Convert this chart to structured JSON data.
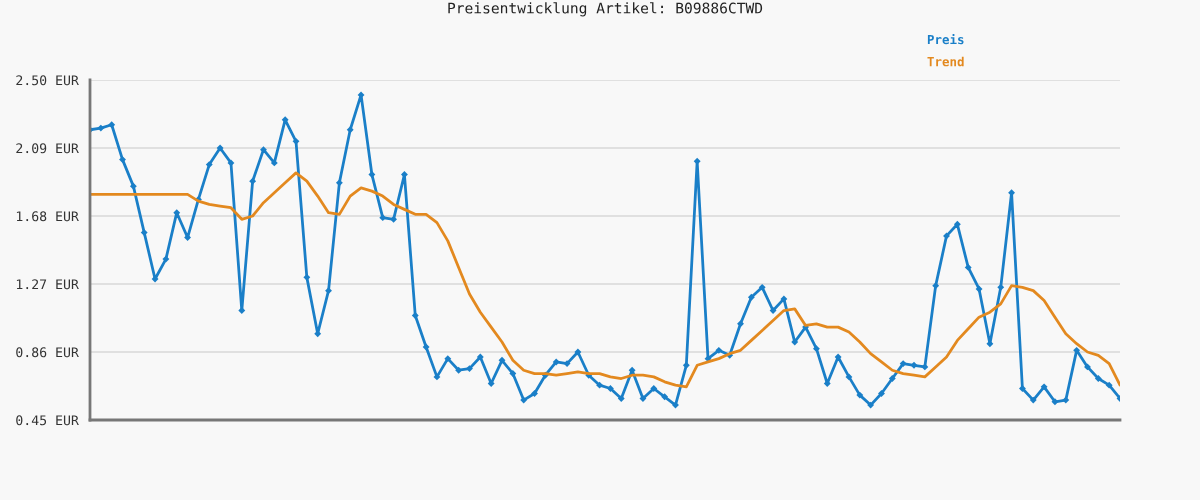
{
  "chart_data": {
    "type": "line",
    "title": "Preisentwicklung Artikel: B09886CTWD",
    "categories": [
      null,
      null,
      null,
      null,
      null,
      null,
      null,
      null,
      null,
      null,
      null,
      null,
      null,
      null,
      null,
      null,
      null,
      null,
      null,
      null,
      null,
      null,
      null,
      null,
      null,
      null,
      null,
      null,
      null,
      null,
      null,
      null,
      null,
      null,
      null,
      null,
      null,
      null,
      null,
      null,
      null,
      null,
      null,
      null,
      null,
      null,
      null,
      null,
      null,
      null,
      null,
      null,
      null,
      null,
      null,
      null,
      null,
      null,
      null,
      null,
      null,
      null,
      null,
      null,
      null,
      null,
      null,
      null,
      null,
      null,
      null,
      null,
      null,
      null,
      null,
      null,
      null,
      null,
      null,
      null,
      null,
      null,
      null,
      null,
      null,
      null,
      null,
      null,
      null,
      null,
      null,
      null,
      null,
      null,
      null,
      null
    ],
    "series": [
      {
        "name": "Preis",
        "color": "#1a7fc8",
        "marker": "diamond",
        "values": [
          2.2,
          2.21,
          2.23,
          2.02,
          1.86,
          1.58,
          1.3,
          1.42,
          1.7,
          1.55,
          1.78,
          1.99,
          2.09,
          2.0,
          1.11,
          1.89,
          2.08,
          2.0,
          2.26,
          2.13,
          1.31,
          0.97,
          1.23,
          1.88,
          2.2,
          2.41,
          1.93,
          1.67,
          1.66,
          1.93,
          1.08,
          0.89,
          0.71,
          0.82,
          0.75,
          0.76,
          0.83,
          0.67,
          0.81,
          0.73,
          0.57,
          0.61,
          0.72,
          0.8,
          0.79,
          0.86,
          0.72,
          0.66,
          0.64,
          0.58,
          0.75,
          0.58,
          0.64,
          0.59,
          0.54,
          0.78,
          2.01,
          0.82,
          0.87,
          0.84,
          1.03,
          1.19,
          1.25,
          1.11,
          1.18,
          0.92,
          1.01,
          0.88,
          0.67,
          0.83,
          0.71,
          0.6,
          0.54,
          0.61,
          0.7,
          0.79,
          0.78,
          0.77,
          1.26,
          1.56,
          1.63,
          1.37,
          1.24,
          0.91,
          1.25,
          1.82,
          0.64,
          0.57,
          0.65,
          0.56,
          0.57,
          0.87,
          0.77,
          0.7,
          0.66,
          0.58
        ]
      },
      {
        "name": "Trend",
        "color": "#e3891f",
        "marker": "none",
        "values": [
          1.81,
          1.81,
          1.81,
          1.81,
          1.81,
          1.81,
          1.81,
          1.81,
          1.81,
          1.81,
          1.77,
          1.75,
          1.74,
          1.73,
          1.66,
          1.68,
          1.76,
          1.82,
          1.88,
          1.94,
          1.89,
          1.8,
          1.7,
          1.69,
          1.8,
          1.85,
          1.83,
          1.8,
          1.75,
          1.72,
          1.69,
          1.69,
          1.64,
          1.53,
          1.37,
          1.21,
          1.1,
          1.01,
          0.92,
          0.81,
          0.75,
          0.73,
          0.73,
          0.72,
          0.73,
          0.74,
          0.73,
          0.73,
          0.71,
          0.7,
          0.72,
          0.72,
          0.71,
          0.68,
          0.66,
          0.65,
          0.78,
          0.8,
          0.82,
          0.85,
          0.87,
          0.93,
          0.99,
          1.05,
          1.11,
          1.12,
          1.02,
          1.03,
          1.01,
          1.01,
          0.98,
          0.92,
          0.85,
          0.8,
          0.75,
          0.73,
          0.72,
          0.71,
          0.77,
          0.83,
          0.93,
          1.0,
          1.07,
          1.1,
          1.15,
          1.26,
          1.25,
          1.23,
          1.17,
          1.07,
          0.97,
          0.91,
          0.86,
          0.84,
          0.79,
          0.66
        ]
      }
    ],
    "ylim": [
      0.45,
      2.5
    ],
    "yticks": [
      {
        "value": 0.45,
        "label": "0.45 EUR"
      },
      {
        "value": 0.86,
        "label": "0.86 EUR"
      },
      {
        "value": 1.27,
        "label": "1.27 EUR"
      },
      {
        "value": 1.68,
        "label": "1.68 EUR"
      },
      {
        "value": 2.09,
        "label": "2.09 EUR"
      },
      {
        "value": 2.5,
        "label": "2.50 EUR"
      }
    ],
    "grid": "y",
    "legend": "top right",
    "line_style": "solid"
  }
}
